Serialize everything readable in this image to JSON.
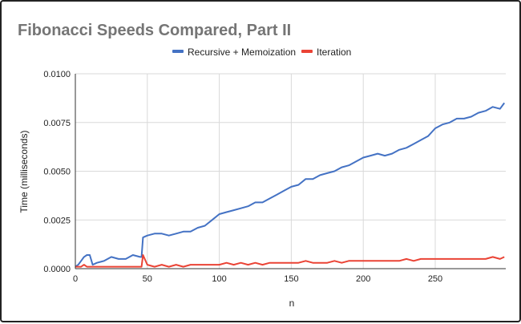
{
  "chart_data": {
    "type": "line",
    "title": "Fibonacci Speeds Compared, Part II",
    "xlabel": "n",
    "ylabel": "Time (milliseconds)",
    "xlim": [
      0,
      299
    ],
    "ylim": [
      0,
      0.01
    ],
    "x_ticks": [
      "0",
      "50",
      "100",
      "150",
      "200",
      "250"
    ],
    "x_tick_values": [
      0,
      50,
      100,
      150,
      200,
      250
    ],
    "y_ticks": [
      "0.0000",
      "0.0025",
      "0.0050",
      "0.0075",
      "0.0100"
    ],
    "y_tick_values": [
      0,
      0.0025,
      0.005,
      0.0075,
      0.01
    ],
    "grid": true,
    "legend_position": "top",
    "x": [
      0,
      2,
      4,
      6,
      8,
      10,
      12,
      15,
      20,
      25,
      30,
      35,
      40,
      45,
      46,
      47,
      50,
      55,
      60,
      65,
      70,
      75,
      80,
      85,
      90,
      95,
      100,
      105,
      110,
      115,
      120,
      125,
      130,
      135,
      140,
      145,
      150,
      155,
      160,
      165,
      170,
      175,
      180,
      185,
      190,
      195,
      200,
      205,
      210,
      215,
      220,
      225,
      230,
      235,
      240,
      245,
      250,
      255,
      260,
      265,
      270,
      275,
      280,
      285,
      290,
      295,
      298
    ],
    "series": [
      {
        "name": "Recursive + Memoization",
        "color": "#4472c4",
        "values": [
          0.0001,
          0.0002,
          0.0004,
          0.0006,
          0.0007,
          0.0007,
          0.0002,
          0.0003,
          0.0004,
          0.0006,
          0.0005,
          0.0005,
          0.0007,
          0.0006,
          0.0006,
          0.0016,
          0.0017,
          0.0018,
          0.0018,
          0.0017,
          0.0018,
          0.0019,
          0.0019,
          0.0021,
          0.0022,
          0.0025,
          0.0028,
          0.0029,
          0.003,
          0.0031,
          0.0032,
          0.0034,
          0.0034,
          0.0036,
          0.0038,
          0.004,
          0.0042,
          0.0043,
          0.0046,
          0.0046,
          0.0048,
          0.0049,
          0.005,
          0.0052,
          0.0053,
          0.0055,
          0.0057,
          0.0058,
          0.0059,
          0.0058,
          0.0059,
          0.0061,
          0.0062,
          0.0064,
          0.0066,
          0.0068,
          0.0072,
          0.0074,
          0.0075,
          0.0077,
          0.0077,
          0.0078,
          0.008,
          0.0081,
          0.0083,
          0.0082,
          0.0085
        ]
      },
      {
        "name": "Iteration",
        "color": "#ea4335",
        "values": [
          0.0001,
          0.0001,
          0.0001,
          0.0002,
          0.0001,
          0.0001,
          0.0001,
          0.0001,
          0.0001,
          0.0001,
          0.0001,
          0.0001,
          0.0001,
          0.0001,
          0.0001,
          0.0007,
          0.0002,
          0.0001,
          0.0002,
          0.0001,
          0.0002,
          0.0001,
          0.0002,
          0.0002,
          0.0002,
          0.0002,
          0.0002,
          0.0003,
          0.0002,
          0.0003,
          0.0002,
          0.0003,
          0.0002,
          0.0003,
          0.0003,
          0.0003,
          0.0003,
          0.0003,
          0.0004,
          0.0003,
          0.0003,
          0.0003,
          0.0004,
          0.0003,
          0.0004,
          0.0004,
          0.0004,
          0.0004,
          0.0004,
          0.0004,
          0.0004,
          0.0004,
          0.0005,
          0.0004,
          0.0005,
          0.0005,
          0.0005,
          0.0005,
          0.0005,
          0.0005,
          0.0005,
          0.0005,
          0.0005,
          0.0005,
          0.0006,
          0.0005,
          0.0006
        ]
      }
    ]
  }
}
